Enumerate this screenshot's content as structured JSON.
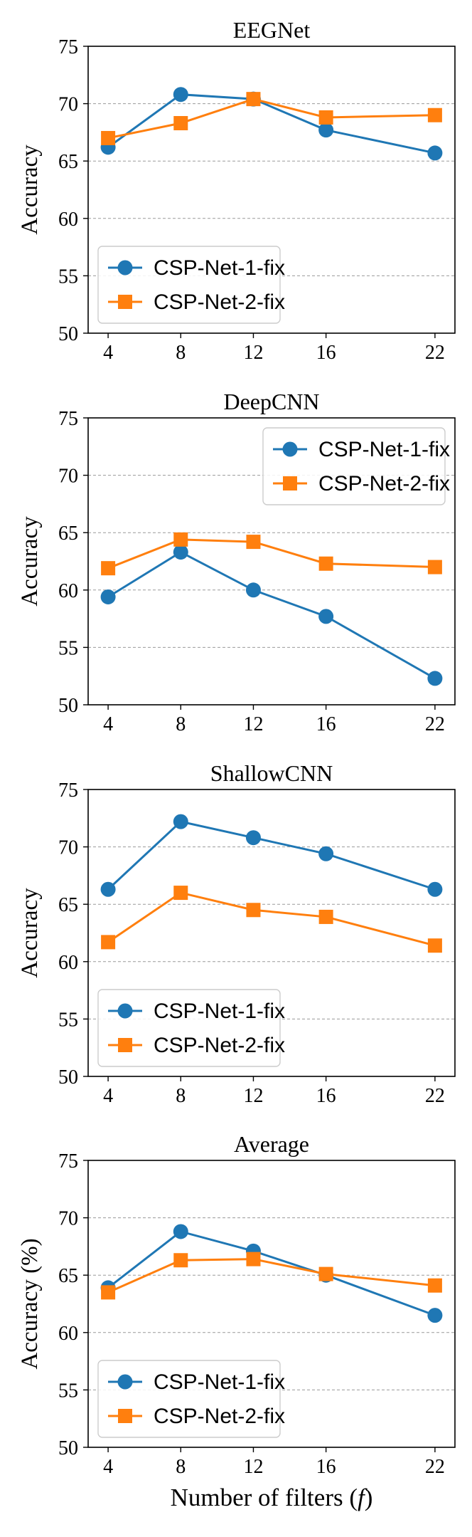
{
  "chart_data": [
    {
      "type": "line",
      "title": "EEGNet",
      "xlabel": "",
      "ylabel": "Accuracy",
      "x": [
        4,
        8,
        12,
        16,
        22
      ],
      "ylim": [
        50,
        75
      ],
      "yticks": [
        50,
        55,
        60,
        65,
        70,
        75
      ],
      "grid": true,
      "legend_position": "lower-left",
      "series": [
        {
          "name": "CSP-Net-1-fix",
          "color": "#1f77b4",
          "marker": "circle",
          "values": [
            66.2,
            70.8,
            70.4,
            67.7,
            65.7
          ]
        },
        {
          "name": "CSP-Net-2-fix",
          "color": "#ff7f0e",
          "marker": "square",
          "values": [
            67.0,
            68.3,
            70.4,
            68.8,
            69.0
          ]
        }
      ]
    },
    {
      "type": "line",
      "title": "DeepCNN",
      "xlabel": "",
      "ylabel": "Accuracy",
      "x": [
        4,
        8,
        12,
        16,
        22
      ],
      "ylim": [
        50,
        75
      ],
      "yticks": [
        50,
        55,
        60,
        65,
        70,
        75
      ],
      "grid": true,
      "legend_position": "upper-right",
      "series": [
        {
          "name": "CSP-Net-1-fix",
          "color": "#1f77b4",
          "marker": "circle",
          "values": [
            59.4,
            63.3,
            60.0,
            57.7,
            52.3
          ]
        },
        {
          "name": "CSP-Net-2-fix",
          "color": "#ff7f0e",
          "marker": "square",
          "values": [
            61.9,
            64.4,
            64.2,
            62.3,
            62.0
          ]
        }
      ]
    },
    {
      "type": "line",
      "title": "ShallowCNN",
      "xlabel": "",
      "ylabel": "Accuracy",
      "x": [
        4,
        8,
        12,
        16,
        22
      ],
      "ylim": [
        50,
        75
      ],
      "yticks": [
        50,
        55,
        60,
        65,
        70,
        75
      ],
      "grid": true,
      "legend_position": "lower-left",
      "series": [
        {
          "name": "CSP-Net-1-fix",
          "color": "#1f77b4",
          "marker": "circle",
          "values": [
            66.3,
            72.2,
            70.8,
            69.4,
            66.3
          ]
        },
        {
          "name": "CSP-Net-2-fix",
          "color": "#ff7f0e",
          "marker": "square",
          "values": [
            61.7,
            66.0,
            64.5,
            63.9,
            61.4
          ]
        }
      ]
    },
    {
      "type": "line",
      "title": "Average",
      "xlabel": "Number of filters (",
      "xlabel_var": "f",
      "xlabel_end": ")",
      "ylabel": "Accuracy (%)",
      "x": [
        4,
        8,
        12,
        16,
        22
      ],
      "ylim": [
        50,
        75
      ],
      "yticks": [
        50,
        55,
        60,
        65,
        70,
        75
      ],
      "grid": true,
      "legend_position": "lower-left",
      "series": [
        {
          "name": "CSP-Net-1-fix",
          "color": "#1f77b4",
          "marker": "circle",
          "values": [
            63.9,
            68.8,
            67.1,
            65.0,
            61.5
          ]
        },
        {
          "name": "CSP-Net-2-fix",
          "color": "#ff7f0e",
          "marker": "square",
          "values": [
            63.5,
            66.3,
            66.4,
            65.1,
            64.1
          ]
        }
      ]
    }
  ]
}
